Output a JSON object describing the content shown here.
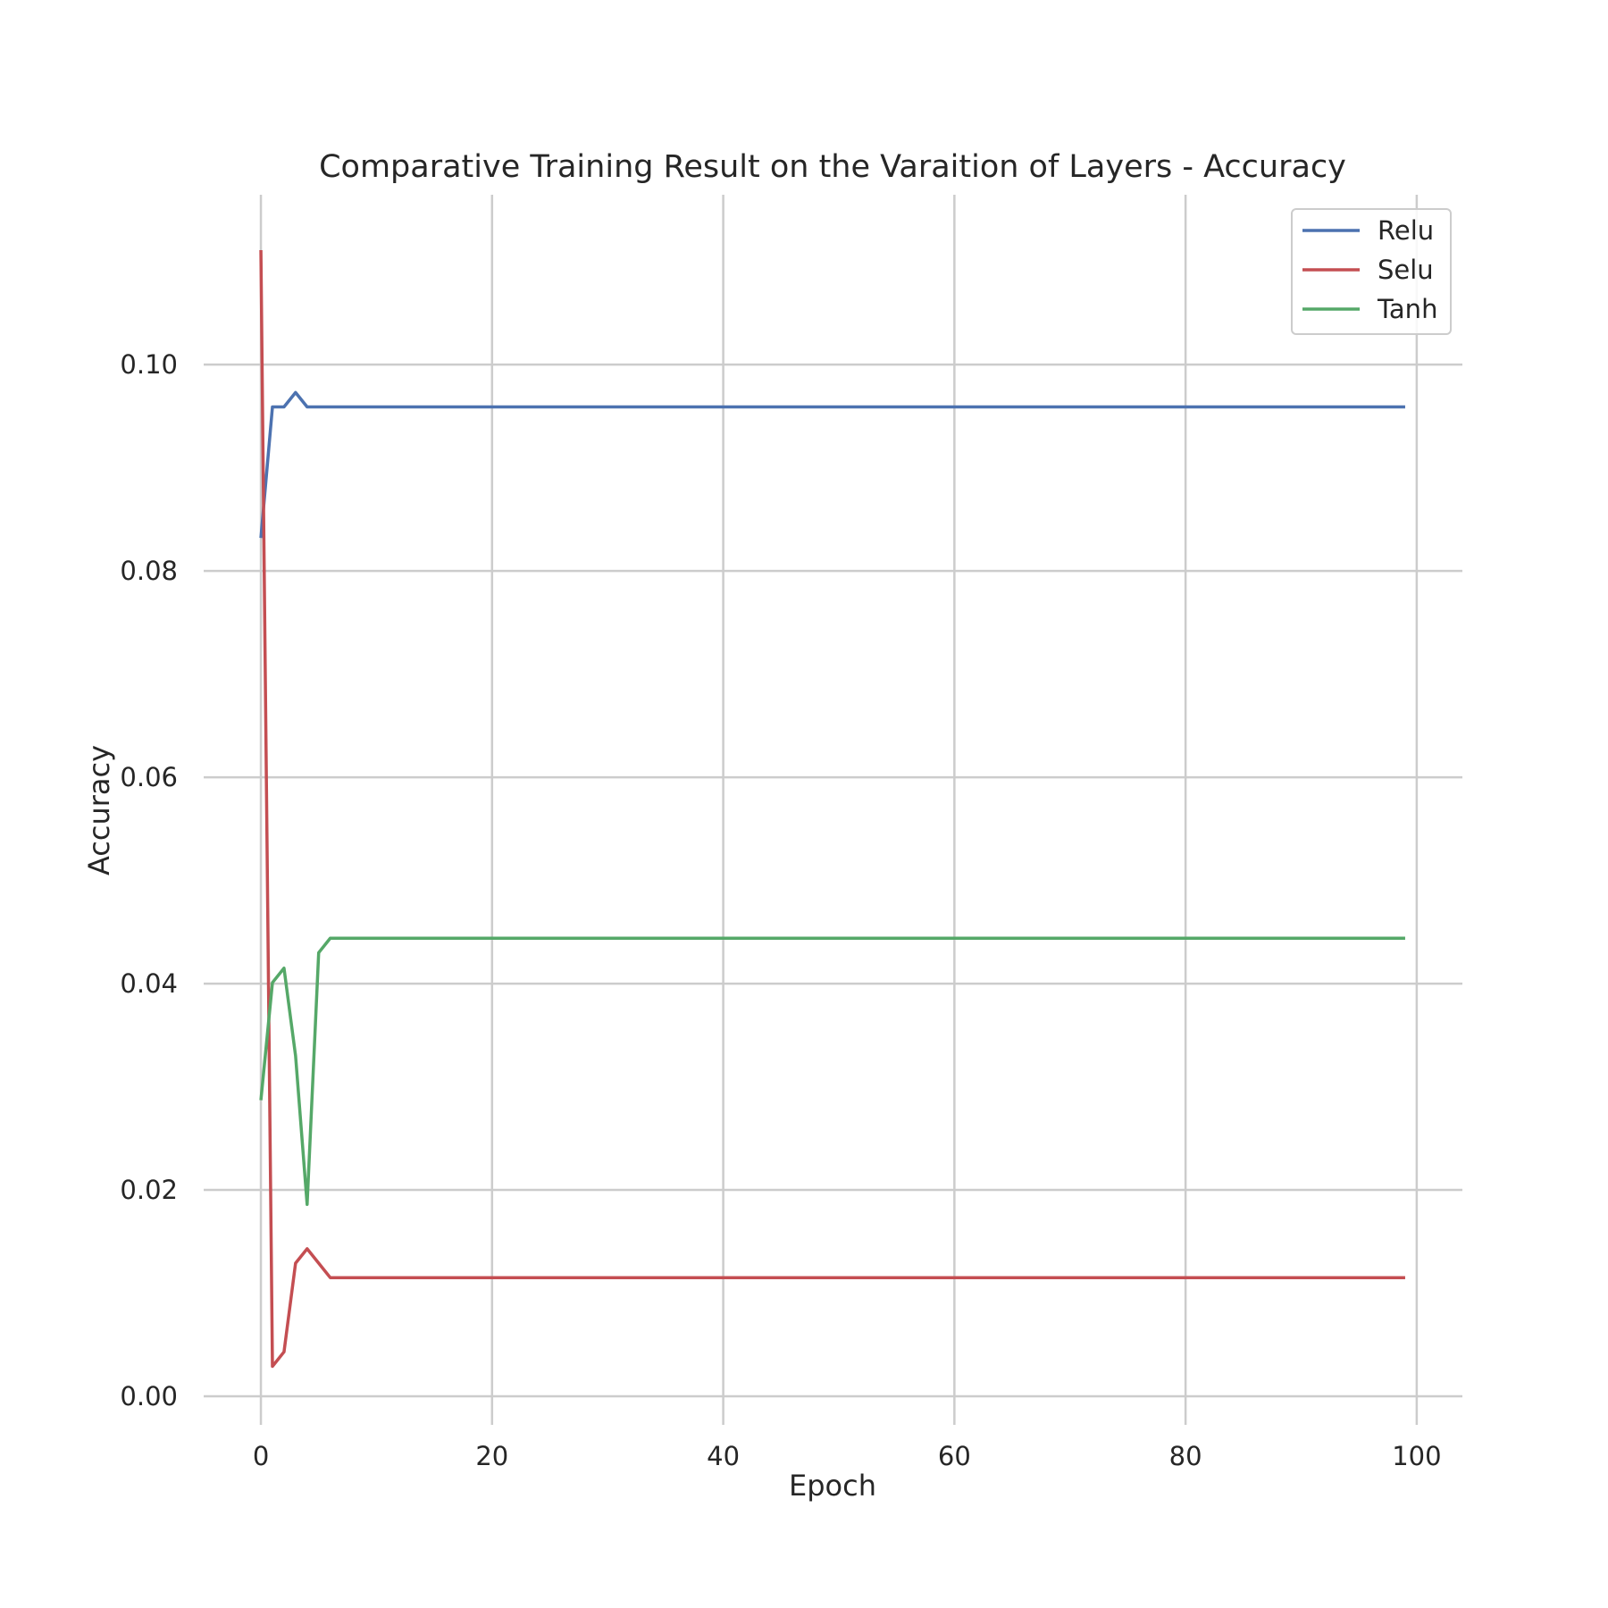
{
  "chart_data": {
    "type": "line",
    "title": "Comparative Training Result on the Varaition of Layers -  Accuracy",
    "xlabel": "Epoch",
    "ylabel": "Accuracy",
    "xlim": [
      -4.95,
      103.95
    ],
    "ylim": [
      0,
      0.1111
    ],
    "x_ticks": [
      0,
      20,
      40,
      60,
      80,
      100
    ],
    "x_tick_labels": [
      "0",
      "20",
      "40",
      "60",
      "80",
      "100"
    ],
    "y_ticks": [
      0.0,
      0.02,
      0.04,
      0.06,
      0.08,
      0.1
    ],
    "y_tick_labels": [
      "0.00",
      "0.02",
      "0.04",
      "0.06",
      "0.08",
      "0.10"
    ],
    "grid": true,
    "legend_position": "top-right",
    "series": [
      {
        "name": "Relu",
        "color": "#4c72b0",
        "points": [
          [
            0,
            0.0832
          ],
          [
            1,
            0.0959
          ],
          [
            2,
            0.0959
          ],
          [
            3,
            0.0973
          ],
          [
            4,
            0.0959
          ],
          [
            99,
            0.0959
          ]
        ]
      },
      {
        "name": "Selu",
        "color": "#c44e52",
        "points": [
          [
            0,
            0.1111
          ],
          [
            1,
            0.0029
          ],
          [
            2,
            0.0043
          ],
          [
            3,
            0.0129
          ],
          [
            4,
            0.0143
          ],
          [
            5,
            0.0129
          ],
          [
            6,
            0.0115
          ],
          [
            99,
            0.0115
          ]
        ]
      },
      {
        "name": "Tanh",
        "color": "#55a868",
        "points": [
          [
            0,
            0.0287
          ],
          [
            1,
            0.0401
          ],
          [
            2,
            0.0415
          ],
          [
            3,
            0.033
          ],
          [
            4,
            0.0186
          ],
          [
            5,
            0.043
          ],
          [
            6,
            0.0444
          ],
          [
            99,
            0.0444
          ]
        ]
      }
    ]
  }
}
